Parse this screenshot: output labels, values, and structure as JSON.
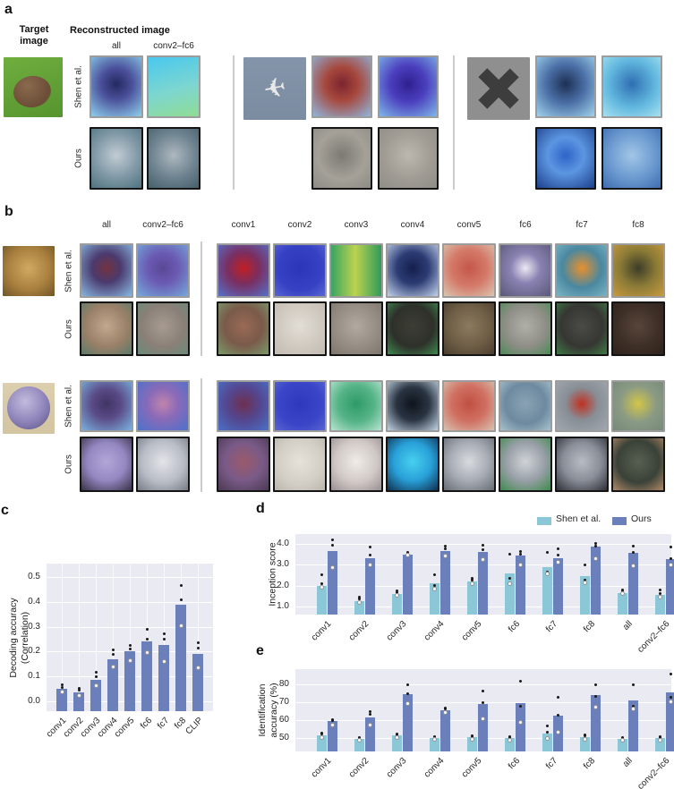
{
  "letters": [
    "a",
    "b",
    "c",
    "d",
    "e"
  ],
  "colors": {
    "shen_bar": "#8cc7d7",
    "ours_bar": "#6b80ba",
    "plot_bg": "#eaeaf2",
    "grid_line": "#ffffff",
    "divider": "#cccccc",
    "text": "#262626",
    "shen_thumb_border": "#9c9c9c",
    "ours_thumb_border": "#141414"
  },
  "panel_a": {
    "target_header": [
      "Target",
      "image"
    ],
    "recon_header": "Reconstructed image",
    "col_labels": [
      "all",
      "conv2–fc6"
    ],
    "row_labels": [
      "Shen et al.",
      "Ours"
    ],
    "groups": [
      {
        "name": "goat",
        "target": {
          "m": "l",
          "a": 160,
          "g": [
            "#6fae3e",
            "#56942f"
          ],
          "ov": "blob"
        },
        "shen": [
          {
            "m": "r",
            "g": [
              "#23295f",
              "#4a4f9a 38%",
              "#8ecfeb"
            ]
          },
          {
            "m": "l",
            "a": 165,
            "g": [
              "#49c8ee",
              "#7dd6d0 55%",
              "#90dc94"
            ]
          }
        ],
        "ours": [
          {
            "m": "r",
            "g": [
              "#c2ccd4",
              "#7f98a5 55%",
              "#4e7280"
            ]
          },
          {
            "m": "r",
            "g": [
              "#aeb8c0",
              "#6d838f 55%",
              "#465f6b"
            ]
          }
        ]
      },
      {
        "name": "airplane",
        "target": {
          "m": "l",
          "a": 180,
          "g": [
            "#8495aa",
            "#7b8ca1"
          ],
          "ov": "plane"
        },
        "shen": [
          {
            "m": "r",
            "g": [
              "#7c2530",
              "#a6473c 38%",
              "#90b5dc"
            ]
          },
          {
            "m": "r",
            "g": [
              "#2f1f8f",
              "#4b3fbe 42%",
              "#7fb7e8"
            ]
          }
        ],
        "ours": [
          {
            "m": "r",
            "g": [
              "#7c7a74",
              "#a5a198 55%",
              "#8d8b85"
            ]
          },
          {
            "m": "r",
            "g": [
              "#bcb8b0",
              "#a09c94 55%",
              "#908d87"
            ]
          }
        ]
      },
      {
        "name": "cross",
        "target": {
          "m": "l",
          "a": 0,
          "g": [
            "#8f8f8f",
            "#8f8f8f"
          ],
          "ov": "x"
        },
        "shen": [
          {
            "m": "r",
            "g": [
              "#1d3053",
              "#4a6ea6 45%",
              "#a0d3eb"
            ]
          },
          {
            "m": "r",
            "g": [
              "#2f6eb2",
              "#62b8df 55%",
              "#a7e1f0"
            ]
          }
        ],
        "ours": [
          {
            "m": "r",
            "g": [
              "#2e64c9",
              "#5c96e1 42%",
              "#1e408c"
            ]
          },
          {
            "m": "r",
            "g": [
              "#a2c6e6",
              "#719fd3 48%",
              "#3f6db1"
            ]
          }
        ]
      }
    ]
  },
  "panel_b": {
    "col_labels": [
      "all",
      "conv2–fc6",
      "conv1",
      "conv2",
      "conv3",
      "conv4",
      "conv5",
      "fc6",
      "fc7",
      "fc8"
    ],
    "row_labels": [
      "Shen et al.",
      "Ours"
    ],
    "blocks": [
      {
        "name": "leopard",
        "target": {
          "m": "r",
          "g": [
            "#d0a961",
            "#a9803f 55%",
            "#6f5526"
          ]
        },
        "shen": [
          {
            "m": "r",
            "g": [
              "#73333f",
              "#4b3a6e 38%",
              "#86b8e2"
            ]
          },
          {
            "m": "r",
            "g": [
              "#5a4896",
              "#6a5ab2 40%",
              "#76a8dc"
            ]
          },
          {
            "m": "r",
            "g": [
              "#c01f24",
              "#7a2e60 42%",
              "#5570c9"
            ]
          },
          {
            "m": "r",
            "g": [
              "#2b35b8",
              "#3642c4 60%",
              "#5a66d2"
            ]
          },
          {
            "m": "l",
            "a": 90,
            "g": [
              "#39a562",
              "#bcd24f 48%",
              "#2f9a5c"
            ]
          },
          {
            "m": "r",
            "g": [
              "#151f4e",
              "#2c3c74 42%",
              "#c2d2ea"
            ]
          },
          {
            "m": "r",
            "g": [
              "#c4574a",
              "#d47969 48%",
              "#dac6b0"
            ]
          },
          {
            "m": "r",
            "g": [
              "#ece8f2",
              "#8a82b2 40%",
              "#5a5878"
            ]
          },
          {
            "m": "r",
            "g": [
              "#e8902c",
              "#4a88a0 52%",
              "#7ab4c4"
            ]
          },
          {
            "m": "r",
            "g": [
              "#3c3c28",
              "#8a7a36 48%",
              "#c89a40"
            ]
          }
        ],
        "ours": [
          {
            "m": "r",
            "g": [
              "#c2a88e",
              "#9a8068 55%",
              "#5a7a6a"
            ]
          },
          {
            "m": "r",
            "g": [
              "#a89c90",
              "#8a8078 55%",
              "#6a8a78"
            ]
          },
          {
            "m": "r",
            "g": [
              "#9a6a56",
              "#7a5a4a 50%",
              "#7a9a6a"
            ]
          },
          {
            "m": "r",
            "g": [
              "#e2ded6",
              "#cfc8be 60%",
              "#c2bcb2"
            ]
          },
          {
            "m": "r",
            "g": [
              "#b2aaa0",
              "#968e84 55%",
              "#7e766c"
            ]
          },
          {
            "m": "r",
            "g": [
              "#3c3e36",
              "#2e302a 55%",
              "#3e8a4e"
            ]
          },
          {
            "m": "r",
            "g": [
              "#8c7a5e",
              "#6e5e46 55%",
              "#4a3e2e"
            ]
          },
          {
            "m": "r",
            "g": [
              "#b0b0a8",
              "#8e8e86 55%",
              "#4e8a58"
            ]
          },
          {
            "m": "r",
            "g": [
              "#4a4a46",
              "#363632 55%",
              "#3e7a46"
            ]
          },
          {
            "m": "r",
            "g": [
              "#58453a",
              "#3e2f26 55%",
              "#2e241e"
            ]
          }
        ]
      },
      {
        "name": "marble",
        "target": {
          "m": "l",
          "a": 180,
          "g": [
            "#dccfae",
            "#d3c4a2"
          ],
          "ov": "ball"
        },
        "shen": [
          {
            "m": "r",
            "g": [
              "#403464",
              "#5a4a86 40%",
              "#7ab2e0"
            ]
          },
          {
            "m": "r",
            "g": [
              "#c084ac",
              "#8a6ab8 42%",
              "#4a72cc"
            ]
          },
          {
            "m": "r",
            "g": [
              "#6e3050",
              "#54468e 45%",
              "#4a70c8"
            ]
          },
          {
            "m": "r",
            "g": [
              "#2e38bc",
              "#3a46c8 60%",
              "#5a64d0"
            ]
          },
          {
            "m": "r",
            "g": [
              "#2e9a66",
              "#56b488 50%",
              "#b8e4d0"
            ]
          },
          {
            "m": "r",
            "g": [
              "#0e141c",
              "#2a3442 45%",
              "#c2d4e4"
            ]
          },
          {
            "m": "r",
            "g": [
              "#c05042",
              "#d07062 48%",
              "#d8c2b0"
            ]
          },
          {
            "m": "r",
            "g": [
              "#8aa2b4",
              "#6e8aa0 55%",
              "#a8c2cc"
            ]
          },
          {
            "m": "r",
            "g": [
              "#c03020",
              "#888e96 45%",
              "#a2a8b0"
            ]
          },
          {
            "m": "r",
            "g": [
              "#d2c648",
              "#8a9a84 50%",
              "#768a78"
            ]
          }
        ],
        "ours": [
          {
            "m": "r",
            "g": [
              "#b2a6d8",
              "#9488c2 50%",
              "#3a3248"
            ]
          },
          {
            "m": "r",
            "g": [
              "#e2e4e8",
              "#b8bcc4 55%",
              "#787c88"
            ]
          },
          {
            "m": "r",
            "g": [
              "#9a5a6a",
              "#7a5a88 50%",
              "#4a3a52"
            ]
          },
          {
            "m": "r",
            "g": [
              "#e6e2da",
              "#d2cec6 60%",
              "#bab6ae"
            ]
          },
          {
            "m": "r",
            "g": [
              "#f0ece8",
              "#d0c8c4 55%",
              "#988e94"
            ]
          },
          {
            "m": "r",
            "g": [
              "#48d0f0",
              "#28a0d8 50%",
              "#103050"
            ]
          },
          {
            "m": "r",
            "g": [
              "#d8dce0",
              "#a8acb4 50%",
              "#686c74"
            ]
          },
          {
            "m": "r",
            "g": [
              "#d0d4d8",
              "#9aa0a8 50%",
              "#3e8a4e"
            ]
          },
          {
            "m": "r",
            "g": [
              "#b8bcc4",
              "#8a8e98 50%",
              "#2e3038"
            ]
          },
          {
            "m": "r",
            "g": [
              "#586052",
              "#3a4238 55%",
              "#b08868"
            ]
          }
        ]
      }
    ]
  },
  "chart_data": [
    {
      "id": "c",
      "type": "bar",
      "ylabel_lines": [
        "Decoding accuracy",
        "(Correlation)"
      ],
      "categories": [
        "conv1",
        "conv2",
        "conv3",
        "conv4",
        "conv5",
        "fc6",
        "fc7",
        "fc8",
        "CLIP"
      ],
      "values": [
        0.05,
        0.035,
        0.085,
        0.17,
        0.2,
        0.24,
        0.225,
        0.39,
        0.19
      ],
      "points": [
        [
          0.065,
          0.055,
          0.038
        ],
        [
          0.052,
          0.045,
          0.022
        ],
        [
          0.115,
          0.1,
          0.062
        ],
        [
          0.205,
          0.19,
          0.14
        ],
        [
          0.225,
          0.21,
          0.165
        ],
        [
          0.29,
          0.25,
          0.195
        ],
        [
          0.27,
          0.25,
          0.16
        ],
        [
          0.465,
          0.41,
          0.305
        ],
        [
          0.235,
          0.215,
          0.135
        ]
      ],
      "yticks": [
        0,
        0.1,
        0.2,
        0.3,
        0.4,
        0.5
      ],
      "ytick_labels": [
        "0.0",
        "0.1",
        "0.2",
        "0.3",
        "0.4",
        "0.5"
      ],
      "ylim": [
        -0.04,
        0.554
      ],
      "grid": true,
      "legend": null
    },
    {
      "id": "d",
      "type": "grouped_bar",
      "ylabel_lines": [
        "Inception score"
      ],
      "categories": [
        "conv1",
        "conv2",
        "conv3",
        "conv4",
        "conv5",
        "fc6",
        "fc7",
        "fc8",
        "all",
        "conv2–fc6"
      ],
      "series": [
        {
          "key": "shen",
          "name": "Shen et al.",
          "values": [
            2.0,
            1.25,
            1.6,
            2.1,
            2.2,
            2.6,
            2.9,
            2.45,
            1.65,
            1.55
          ],
          "points": [
            [
              2.5,
              2.1,
              1.9
            ],
            [
              1.45,
              1.35,
              1.2
            ],
            [
              1.75,
              1.65,
              1.55
            ],
            [
              2.5,
              2.0,
              1.85
            ],
            [
              2.35,
              2.25,
              2.1
            ],
            [
              3.5,
              2.35,
              2.1
            ],
            [
              3.6,
              2.65,
              2.55
            ],
            [
              3.0,
              2.25,
              2.15
            ],
            [
              1.8,
              1.7,
              1.6
            ],
            [
              1.8,
              1.6,
              1.45
            ]
          ]
        },
        {
          "key": "ours",
          "name": "Ours",
          "values": [
            3.65,
            3.3,
            3.5,
            3.65,
            3.6,
            3.45,
            3.3,
            3.85,
            3.55,
            3.25
          ],
          "points": [
            [
              4.2,
              3.95,
              2.85
            ],
            [
              3.85,
              3.45,
              3.0
            ],
            [
              3.6,
              3.55,
              3.45
            ],
            [
              3.9,
              3.75,
              3.4
            ],
            [
              3.95,
              3.7,
              3.25
            ],
            [
              3.65,
              3.5,
              3.0
            ],
            [
              3.75,
              3.45,
              3.1
            ],
            [
              4.0,
              3.9,
              3.3
            ],
            [
              3.9,
              3.6,
              2.95
            ],
            [
              3.85,
              3.3,
              3.0
            ]
          ]
        }
      ],
      "yticks": [
        1,
        2,
        3,
        4
      ],
      "ytick_labels": [
        "1.0",
        "2.0",
        "3.0",
        "4.0"
      ],
      "ylim": [
        0.61,
        4.47
      ],
      "grid": true,
      "legend": [
        "Shen et al.",
        "Ours"
      ],
      "legend_position": "top-right"
    },
    {
      "id": "e",
      "type": "grouped_bar",
      "ylabel_lines": [
        "Identification",
        "accuracy (%)"
      ],
      "categories": [
        "conv1",
        "conv2",
        "conv3",
        "conv4",
        "conv5",
        "fc6",
        "fc7",
        "fc8",
        "all",
        "conv2–fc6"
      ],
      "series": [
        {
          "key": "shen",
          "name": "Shen et al.",
          "values": [
            51.5,
            49.5,
            51.5,
            50,
            50.5,
            50,
            52.5,
            50.5,
            49.5,
            50
          ],
          "points": [
            [
              53,
              52.5,
              50.5
            ],
            [
              50.5,
              50,
              49
            ],
            [
              52.5,
              52,
              50.5
            ],
            [
              51,
              50.5,
              49.5
            ],
            [
              51.5,
              51,
              49.5
            ],
            [
              51,
              50.5,
              49
            ],
            [
              57,
              53.5,
              50
            ],
            [
              52,
              51.5,
              49.5
            ],
            [
              50.5,
              50,
              49
            ],
            [
              51,
              50.5,
              49
            ]
          ]
        },
        {
          "key": "ours",
          "name": "Ours",
          "values": [
            59.5,
            61.5,
            74.5,
            65.5,
            69,
            69.5,
            62.5,
            74,
            71,
            75.5
          ],
          "points": [
            [
              60.5,
              60,
              57.5
            ],
            [
              65,
              63.5,
              57.5
            ],
            [
              80,
              75,
              69.5
            ],
            [
              67,
              66.5,
              64.5
            ],
            [
              76.5,
              70,
              61
            ],
            [
              82,
              68,
              59
            ],
            [
              73,
              63,
              53.5
            ],
            [
              80,
              73.5,
              67.5
            ],
            [
              80,
              68,
              66.5
            ],
            [
              86,
              73,
              70.5
            ]
          ]
        }
      ],
      "yticks": [
        50,
        60,
        70,
        80
      ],
      "ytick_labels": [
        "50",
        "60",
        "70",
        "80"
      ],
      "ylim": [
        42.5,
        88.5
      ],
      "grid": true,
      "legend": null
    }
  ]
}
